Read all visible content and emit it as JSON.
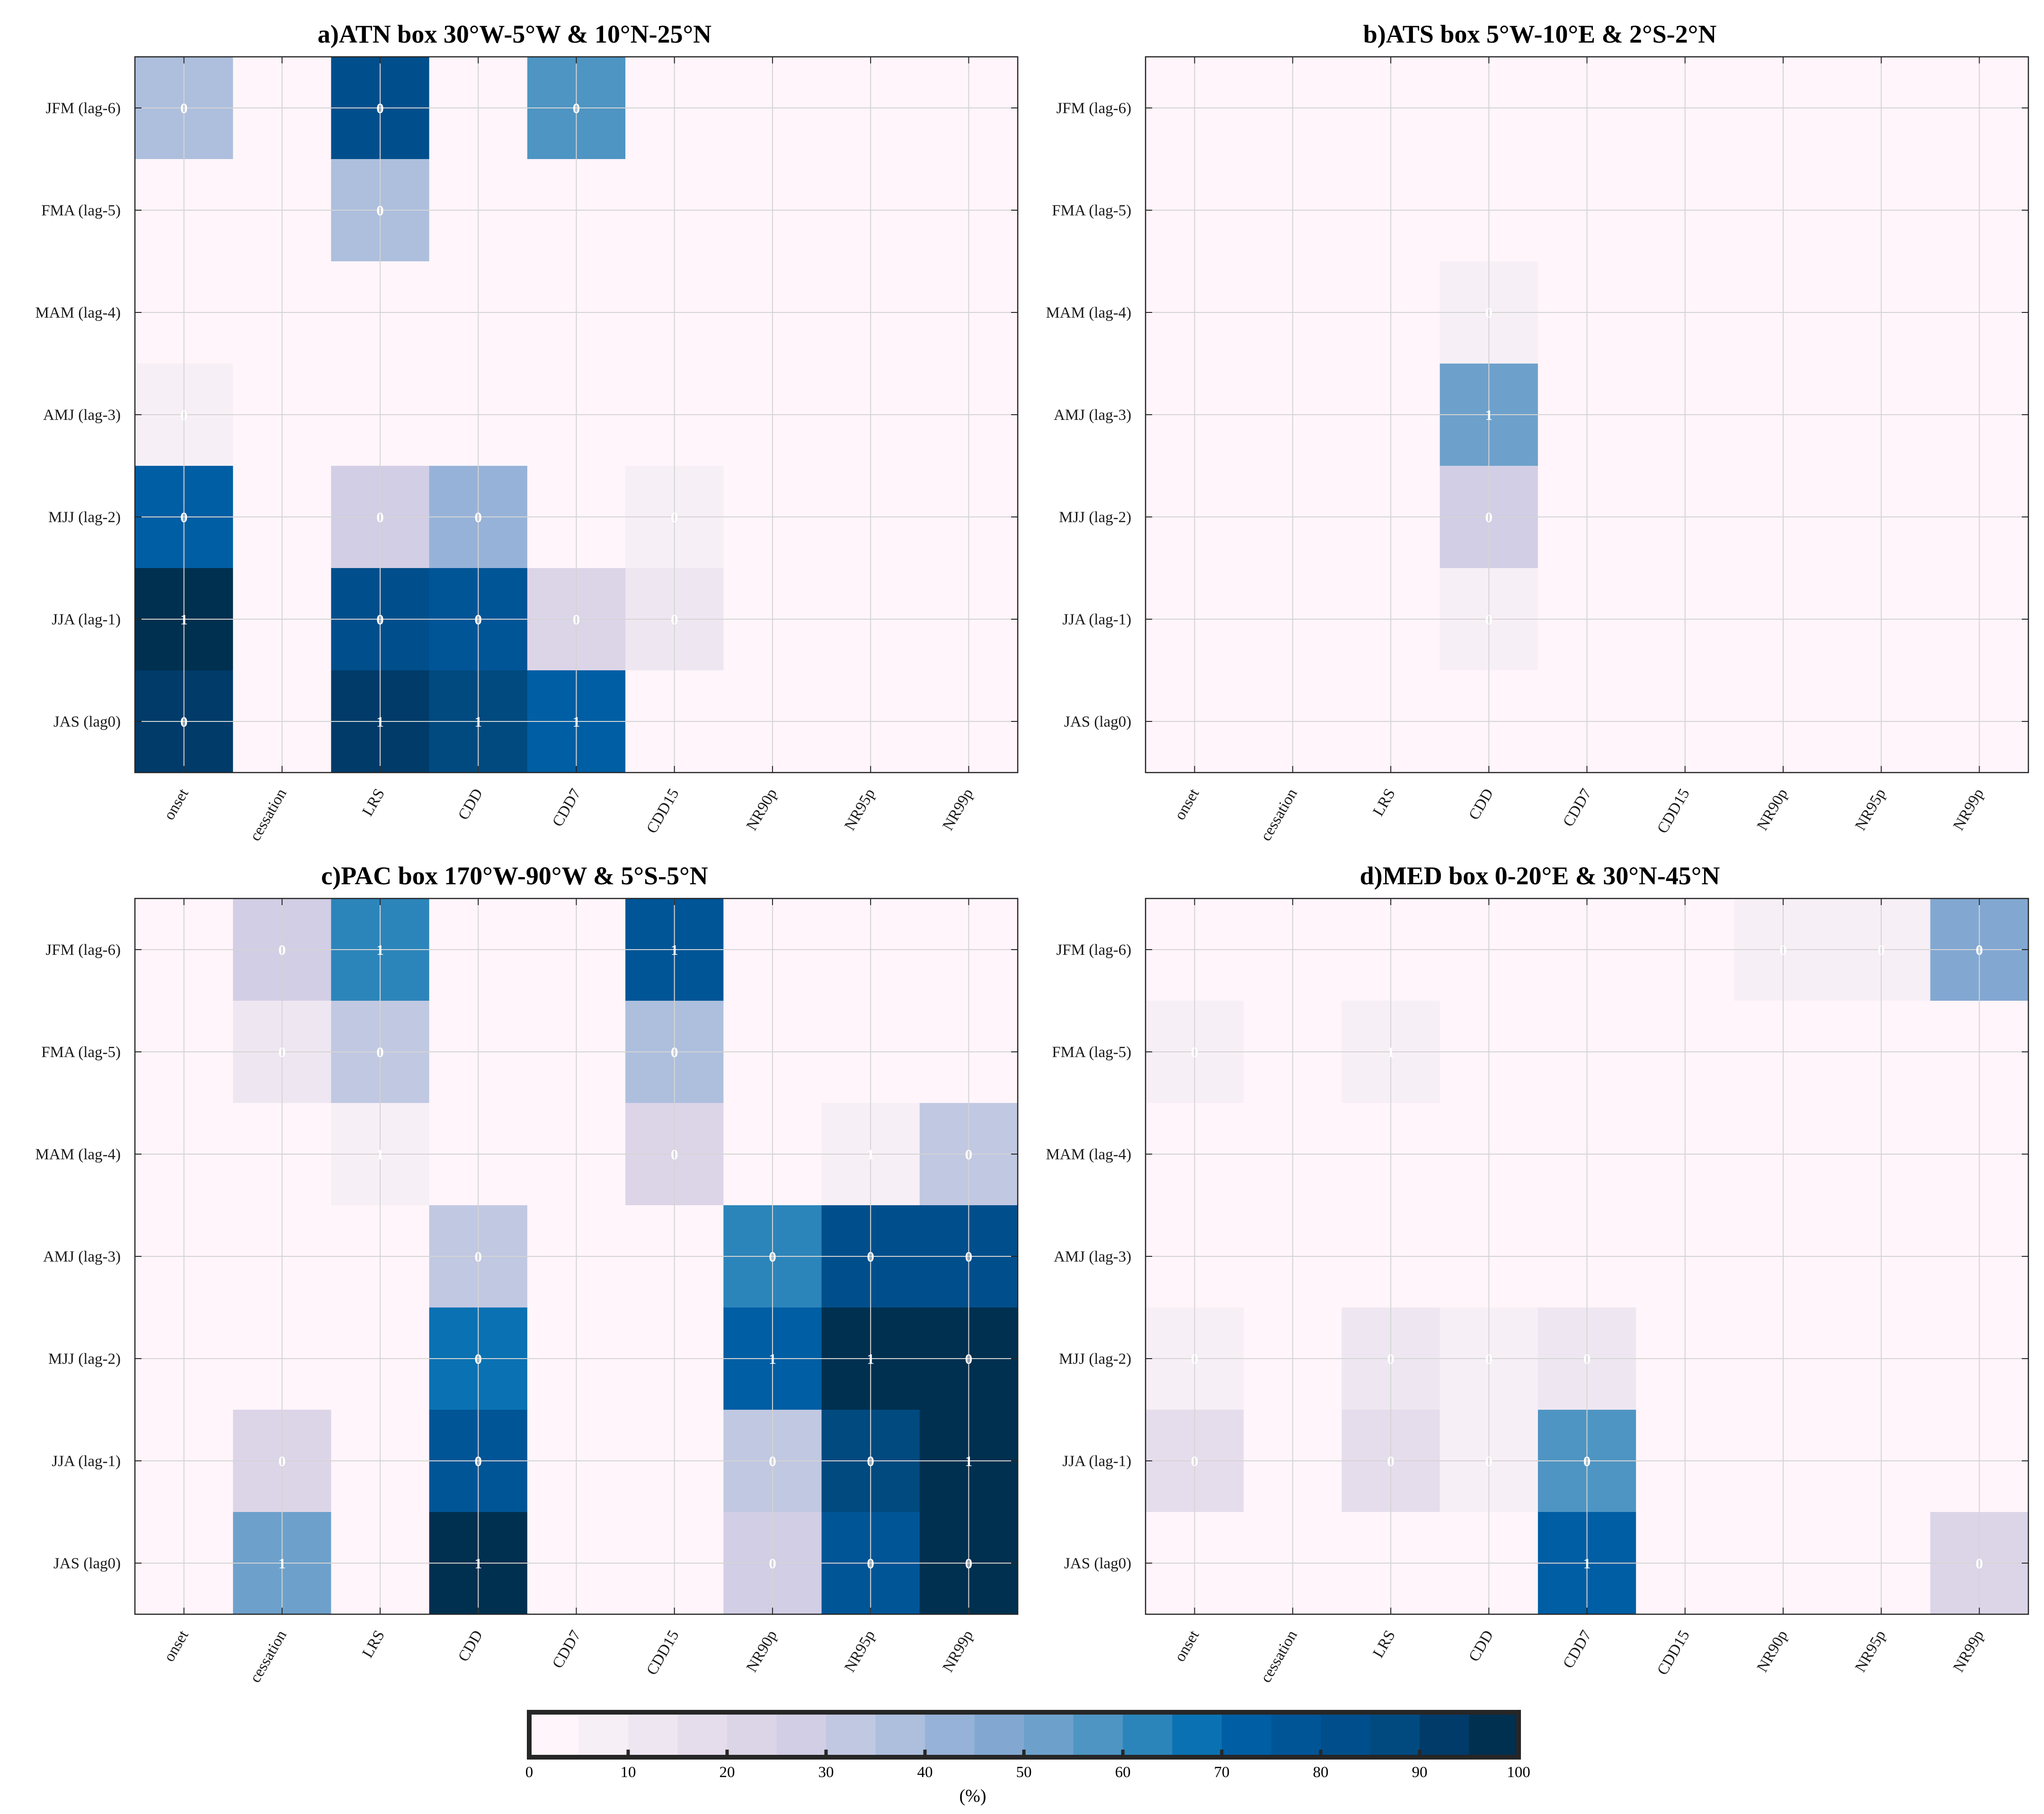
{
  "chart_data": {
    "type": "heatmap",
    "colorbar": {
      "min": 0,
      "max": 100,
      "step": 5,
      "ticks": [
        "0",
        "10",
        "20",
        "30",
        "40",
        "50",
        "60",
        "70",
        "80",
        "90",
        "100"
      ],
      "label": "(%)",
      "colors": [
        "#fff5fa",
        "#f7eff6",
        "#eee7f1",
        "#e5ddec",
        "#dcd5e8",
        "#d2cee5",
        "#c1c8e2",
        "#adbfdd",
        "#97b2d8",
        "#82a8d2",
        "#6da1cc",
        "#4e95c3",
        "#2c85ba",
        "#0a72b2",
        "#005ea4",
        "#005597",
        "#004f8c",
        "#004a80",
        "#003b69",
        "#00304f"
      ]
    },
    "panels": [
      {
        "id": "a",
        "title": "a)ATN box 30°W-5°W & 10°N-25°N",
        "x_categories": [
          "onset",
          "cessation",
          "LRS",
          "CDD",
          "CDD7",
          "CDD15",
          "NR90p",
          "NR95p",
          "NR99p"
        ],
        "y_categories": [
          "JFM (lag-6)",
          "FMA (lag-5)",
          "MAM (lag-4)",
          "AMJ (lag-3)",
          "MJJ (lag-2)",
          "JJA (lag-1)",
          "JAS (lag0)"
        ],
        "values_percent": [
          [
            38,
            0,
            82,
            0,
            55,
            0,
            0,
            0,
            0
          ],
          [
            0,
            0,
            38,
            0,
            0,
            0,
            0,
            0,
            0
          ],
          [
            0,
            0,
            0,
            0,
            0,
            0,
            0,
            0,
            0
          ],
          [
            7,
            0,
            0,
            0,
            0,
            0,
            0,
            0,
            0
          ],
          [
            72,
            0,
            28,
            40,
            0,
            8,
            0,
            0,
            0
          ],
          [
            100,
            0,
            82,
            76,
            22,
            12,
            0,
            0,
            0
          ],
          [
            92,
            0,
            92,
            87,
            72,
            0,
            0,
            0,
            0
          ]
        ],
        "cell_labels": [
          [
            "0",
            "",
            "0",
            "",
            "0",
            "",
            "",
            "",
            ""
          ],
          [
            "",
            "",
            "0",
            "",
            "",
            "",
            "",
            "",
            ""
          ],
          [
            "",
            "",
            "",
            "",
            "",
            "",
            "",
            "",
            ""
          ],
          [
            "0",
            "",
            "",
            "",
            "",
            "",
            "",
            "",
            ""
          ],
          [
            "0",
            "",
            "0",
            "0",
            "",
            "0",
            "",
            "",
            ""
          ],
          [
            "1",
            "",
            "0",
            "0",
            "0",
            "0",
            "",
            "",
            ""
          ],
          [
            "0",
            "",
            "1",
            "1",
            "1",
            "",
            "",
            "",
            ""
          ]
        ]
      },
      {
        "id": "b",
        "title": "b)ATS box 5°W-10°E & 2°S-2°N",
        "x_categories": [
          "onset",
          "cessation",
          "LRS",
          "CDD",
          "CDD7",
          "CDD15",
          "NR90p",
          "NR95p",
          "NR99p"
        ],
        "y_categories": [
          "JFM (lag-6)",
          "FMA (lag-5)",
          "MAM (lag-4)",
          "AMJ (lag-3)",
          "MJJ (lag-2)",
          "JJA (lag-1)",
          "JAS (lag0)"
        ],
        "values_percent": [
          [
            0,
            0,
            0,
            0,
            0,
            0,
            0,
            0,
            0
          ],
          [
            0,
            0,
            0,
            0,
            0,
            0,
            0,
            0,
            0
          ],
          [
            0,
            0,
            0,
            7,
            0,
            0,
            0,
            0,
            0
          ],
          [
            0,
            0,
            0,
            52,
            0,
            0,
            0,
            0,
            0
          ],
          [
            0,
            0,
            0,
            27,
            0,
            0,
            0,
            0,
            0
          ],
          [
            0,
            0,
            0,
            7,
            0,
            0,
            0,
            0,
            0
          ],
          [
            0,
            0,
            0,
            0,
            0,
            0,
            0,
            0,
            0
          ]
        ],
        "cell_labels": [
          [
            "",
            "",
            "",
            "",
            "",
            "",
            "",
            "",
            ""
          ],
          [
            "",
            "",
            "",
            "",
            "",
            "",
            "",
            "",
            ""
          ],
          [
            "",
            "",
            "",
            "0",
            "",
            "",
            "",
            "",
            ""
          ],
          [
            "",
            "",
            "",
            "1",
            "",
            "",
            "",
            "",
            ""
          ],
          [
            "",
            "",
            "",
            "0",
            "",
            "",
            "",
            "",
            ""
          ],
          [
            "",
            "",
            "",
            "0",
            "",
            "",
            "",
            "",
            ""
          ],
          [
            "",
            "",
            "",
            "",
            "",
            "",
            "",
            "",
            ""
          ]
        ]
      },
      {
        "id": "c",
        "title": "c)PAC box 170°W-90°W & 5°S-5°N",
        "x_categories": [
          "onset",
          "cessation",
          "LRS",
          "CDD",
          "CDD7",
          "CDD15",
          "NR90p",
          "NR95p",
          "NR99p"
        ],
        "y_categories": [
          "JFM (lag-6)",
          "FMA (lag-5)",
          "MAM (lag-4)",
          "AMJ (lag-3)",
          "MJJ (lag-2)",
          "JJA (lag-1)",
          "JAS (lag0)"
        ],
        "values_percent": [
          [
            0,
            27,
            62,
            0,
            0,
            77,
            0,
            0,
            0
          ],
          [
            0,
            13,
            33,
            0,
            0,
            38,
            0,
            0,
            0
          ],
          [
            0,
            0,
            7,
            0,
            0,
            22,
            0,
            7,
            33
          ],
          [
            0,
            0,
            0,
            33,
            0,
            0,
            62,
            82,
            82
          ],
          [
            0,
            0,
            0,
            67,
            0,
            0,
            72,
            100,
            100
          ],
          [
            0,
            22,
            0,
            77,
            0,
            0,
            33,
            87,
            100
          ],
          [
            0,
            52,
            0,
            100,
            0,
            0,
            27,
            77,
            100
          ]
        ],
        "cell_labels": [
          [
            "",
            "0",
            "1",
            "",
            "",
            "1",
            "",
            "",
            ""
          ],
          [
            "",
            "0",
            "0",
            "",
            "",
            "0",
            "",
            "",
            ""
          ],
          [
            "",
            "",
            "1",
            "",
            "",
            "0",
            "",
            "1",
            "0"
          ],
          [
            "",
            "",
            "",
            "0",
            "",
            "",
            "0",
            "0",
            "0"
          ],
          [
            "",
            "",
            "",
            "0",
            "",
            "",
            "1",
            "1",
            "0"
          ],
          [
            "",
            "0",
            "",
            "0",
            "",
            "",
            "0",
            "0",
            "1"
          ],
          [
            "",
            "1",
            "",
            "1",
            "",
            "",
            "0",
            "0",
            "0"
          ]
        ]
      },
      {
        "id": "d",
        "title": "d)MED box 0-20°E & 30°N-45°N",
        "x_categories": [
          "onset",
          "cessation",
          "LRS",
          "CDD",
          "CDD7",
          "CDD15",
          "NR90p",
          "NR95p",
          "NR99p"
        ],
        "y_categories": [
          "JFM (lag-6)",
          "FMA (lag-5)",
          "MAM (lag-4)",
          "AMJ (lag-3)",
          "MJJ (lag-2)",
          "JJA (lag-1)",
          "JAS (lag0)"
        ],
        "values_percent": [
          [
            0,
            0,
            0,
            0,
            0,
            0,
            7,
            7,
            47
          ],
          [
            7,
            0,
            7,
            0,
            0,
            0,
            0,
            0,
            0
          ],
          [
            0,
            0,
            0,
            0,
            0,
            0,
            0,
            0,
            0
          ],
          [
            0,
            0,
            0,
            0,
            0,
            0,
            0,
            0,
            0
          ],
          [
            7,
            0,
            12,
            7,
            12,
            0,
            0,
            0,
            0
          ],
          [
            17,
            0,
            17,
            7,
            57,
            0,
            0,
            0,
            0
          ],
          [
            0,
            0,
            0,
            0,
            72,
            0,
            0,
            0,
            22
          ]
        ],
        "cell_labels": [
          [
            "",
            "",
            "",
            "",
            "",
            "",
            "0",
            "0",
            "0"
          ],
          [
            "0",
            "",
            "1",
            "",
            "",
            "",
            "",
            "",
            ""
          ],
          [
            "",
            "",
            "",
            "",
            "",
            "",
            "",
            "",
            ""
          ],
          [
            "",
            "",
            "",
            "",
            "",
            "",
            "",
            "",
            ""
          ],
          [
            "0",
            "",
            "0",
            "0",
            "0",
            "",
            "",
            "",
            ""
          ],
          [
            "0",
            "",
            "0",
            "0",
            "0",
            "",
            "",
            "",
            ""
          ],
          [
            "",
            "",
            "",
            "",
            "1",
            "",
            "",
            "",
            "0"
          ]
        ]
      }
    ]
  }
}
